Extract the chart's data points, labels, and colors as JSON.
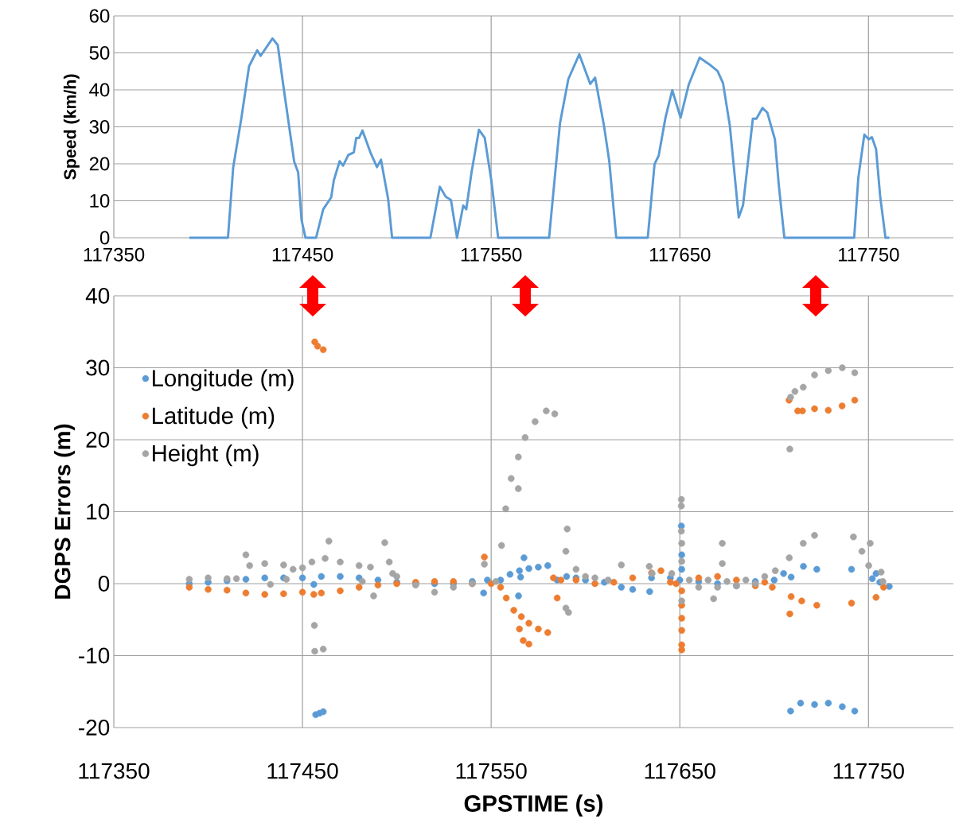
{
  "chart_data": [
    {
      "type": "line",
      "ylabel": "Speed (km/h)",
      "xlim": [
        117350,
        117795
      ],
      "ylim": [
        0,
        60
      ],
      "xticks": [
        117350,
        117450,
        117550,
        117650,
        117750
      ],
      "yticks": [
        0,
        10,
        20,
        30,
        40,
        50,
        60
      ],
      "grid": true,
      "marker": "none",
      "line_style": "solid",
      "series": [
        {
          "color": "#5b9bd5",
          "x": [
            117390,
            117410.5,
            117413.3,
            117417.5,
            117421.7,
            117426,
            117427.8,
            117434.1,
            117436.9,
            117440,
            117442.8,
            117445.6,
            117447.7,
            117449.5,
            117451.6,
            117457.2,
            117461,
            117465.2,
            117466.6,
            117469.7,
            117471.5,
            117474.3,
            117477.2,
            117478.5,
            117480,
            117481.8,
            117486.3,
            117489.5,
            117491.6,
            117495.4,
            117497.5,
            117517.8,
            117522.8,
            117525.9,
            117528.7,
            117531.9,
            117535.2,
            117536.8,
            117539.6,
            117543.5,
            117546.6,
            117550.1,
            117553.7,
            117580.7,
            117584.4,
            117586.5,
            117590.9,
            117596.7,
            117602.5,
            117605.1,
            117609.8,
            117612.6,
            117616.3,
            117633,
            117636.6,
            117638.8,
            117642.4,
            117646,
            117650.4,
            117654.7,
            117660.5,
            117666.4,
            117670,
            117672.9,
            117676.5,
            117679.2,
            117681.2,
            117683.5,
            117688.7,
            117690.6,
            117693.8,
            117696.4,
            117700.4,
            117702.5,
            117705.4,
            117742.4,
            117744.6,
            117747.8,
            117750.1,
            117751.8,
            117754,
            117756.2,
            117759,
            117761
          ],
          "values": [
            0,
            0,
            19.1,
            32,
            46.4,
            50.7,
            49.2,
            53.9,
            52.1,
            40.6,
            30.6,
            20.6,
            17.7,
            4.8,
            0,
            0,
            7.7,
            10.9,
            15.5,
            20.7,
            19.5,
            22.4,
            23.1,
            27,
            27,
            29,
            22.7,
            19.1,
            21.1,
            10.5,
            0,
            0,
            13.8,
            11.1,
            10.2,
            0,
            8.7,
            7.7,
            17.7,
            29.2,
            27,
            15.5,
            0,
            0,
            19.9,
            31,
            42.9,
            49.6,
            41.6,
            43.3,
            30.3,
            20.7,
            0,
            0,
            19.9,
            22.2,
            32.5,
            39.9,
            32.5,
            41.4,
            48.7,
            46.6,
            45.1,
            41.8,
            30.3,
            16.2,
            5.5,
            8.8,
            32.2,
            32.2,
            35.1,
            33.8,
            26.6,
            14,
            0,
            0,
            16.2,
            27.9,
            26.6,
            27.2,
            24,
            11.1,
            0,
            0
          ]
        }
      ]
    },
    {
      "type": "scatter",
      "xlabel": "GPSTIME (s)",
      "ylabel": "DGPS Errors (m)",
      "xlim": [
        117350,
        117795
      ],
      "ylim": [
        -20,
        40
      ],
      "xticks": [
        117350,
        117450,
        117550,
        117650,
        117750
      ],
      "yticks": [
        -20,
        -10,
        0,
        10,
        20,
        30,
        40
      ],
      "grid": true,
      "legend": "top left",
      "marker": "circle",
      "series": [
        {
          "name": "Longitude (m)",
          "color": "#5b9bd5",
          "x": [
            117390,
            117400,
            117410,
            117420,
            117430,
            117440,
            117450,
            117456,
            117457,
            117459,
            117461,
            117460,
            117470,
            117480,
            117490,
            117500,
            117510,
            117520,
            117530,
            117540,
            117546,
            117548,
            117555,
            117560,
            117564.5,
            117565,
            117565.6,
            117567.4,
            117570,
            117575,
            117580,
            117585,
            117590,
            117595,
            117600,
            117610,
            117619,
            117625,
            117634,
            117635,
            117645,
            117650,
            117650.8,
            117651,
            117651,
            117660,
            117670,
            117680,
            117690,
            117700,
            117705,
            117709,
            117715.5,
            117722.6,
            117741,
            117754,
            117752,
            117756,
            117761,
            117708.7,
            117714,
            117721.4,
            117728.7,
            117736.1,
            117742.7
          ],
          "values": [
            0,
            0.2,
            0.4,
            0.6,
            0.8,
            0.8,
            0.8,
            -0.1,
            -18.2,
            -18,
            -17.8,
            1.0,
            1.0,
            0.8,
            0.5,
            0.2,
            0,
            0,
            0,
            0.3,
            -1.3,
            0.5,
            0.5,
            1.3,
            -1.7,
            1.8,
            0.9,
            3.6,
            2.1,
            2.3,
            2.5,
            0.5,
            1.0,
            0.8,
            0.5,
            0.2,
            -0.5,
            -0.8,
            -1.1,
            0.8,
            0.8,
            0.5,
            8.0,
            4,
            2,
            0.3,
            0,
            -0.3,
            0.3,
            0.5,
            1.4,
            0.9,
            2.4,
            2.0,
            2.0,
            1.4,
            0.7,
            0.2,
            -0.4,
            -17.7,
            -16.6,
            -16.8,
            -16.6,
            -17.1,
            -17.7
          ]
        },
        {
          "name": "Latitude (m)",
          "color": "#ed7d31",
          "x": [
            117390,
            117400,
            117410,
            117420,
            117430,
            117440,
            117450,
            117456,
            117460,
            117470,
            117480,
            117490,
            117500,
            117510,
            117520,
            117530,
            117540,
            117550,
            117456.5,
            117458,
            117461,
            117546.4,
            117555,
            117558,
            117562,
            117565,
            117566,
            117570,
            117575,
            117580,
            117567,
            117570,
            117583,
            117585,
            117587,
            117595,
            117605,
            117615,
            117625,
            117635,
            117640,
            117645,
            117648,
            117651,
            117651,
            117651,
            117651,
            117651,
            117651,
            117660,
            117670,
            117680,
            117690,
            117695,
            117699,
            117709,
            117708.3,
            117714.6,
            117722.6,
            117741,
            117754,
            117758,
            117707.9,
            117712.5,
            117715,
            117721.4,
            117728.7,
            117736,
            117742.7
          ],
          "values": [
            -0.5,
            -0.8,
            -0.9,
            -1.3,
            -1.5,
            -1.4,
            -1.2,
            -1.5,
            -1.3,
            -1,
            -0.5,
            -0.2,
            0,
            0.2,
            0.3,
            0.3,
            0,
            0,
            33.6,
            33,
            32.5,
            3.7,
            -0.5,
            -2,
            -3.7,
            -6.3,
            -4.6,
            -5.5,
            -6.3,
            -6.8,
            -7.9,
            -8.4,
            0.8,
            -2,
            0.5,
            0.5,
            0,
            0.2,
            0.8,
            1.5,
            1.8,
            0.2,
            0,
            -1,
            -3,
            -4.8,
            -6.5,
            -8.5,
            -9.2,
            0.8,
            1,
            0.5,
            -0.3,
            0.2,
            -0.5,
            -1.8,
            -4.2,
            -2.4,
            -3.0,
            -2.7,
            -1.9,
            -0.5,
            25.5,
            24.0,
            24,
            24.3,
            24.1,
            24.7,
            25.5
          ]
        },
        {
          "name": "Height (m)",
          "color": "#a5a5a5",
          "x": [
            117390,
            117400,
            117410,
            117415,
            117420,
            117422,
            117430,
            117433,
            117440,
            117441.5,
            117445,
            117450,
            117455,
            117456.3,
            117456.5,
            117461,
            117462,
            117464,
            117470,
            117480,
            117481.7,
            117486,
            117487.7,
            117493.6,
            117496,
            117497.8,
            117500,
            117510,
            117520,
            117530,
            117540,
            117546.4,
            117552.5,
            117555.5,
            117557.7,
            117560.6,
            117564.4,
            117564.4,
            117568,
            117573.3,
            117579.2,
            117583.7,
            117589.6,
            117590.3,
            117589.6,
            117591,
            117595,
            117600,
            117605,
            117612,
            117619,
            117633.8,
            117635.3,
            117645.7,
            117650.8,
            117650.8,
            117650.8,
            117651,
            117651,
            117651,
            117655,
            117660,
            117665,
            117667.9,
            117670,
            117672.5,
            117672.5,
            117675,
            117680,
            117685,
            117690,
            117695,
            117700.6,
            117708,
            117708.3,
            117708.7,
            117711,
            117715.4,
            117721.4,
            117728.7,
            117736.1,
            117742.7,
            117715.4,
            117721.4,
            117742,
            117746.5,
            117750.9,
            117750.1,
            117756.7,
            117757.6
          ],
          "values": [
            0.6,
            0.8,
            0.7,
            0.7,
            4.0,
            2.5,
            2.8,
            -0.1,
            2.6,
            0.6,
            2.0,
            2.2,
            3.0,
            -5.8,
            -9.4,
            -9.1,
            3.5,
            5.9,
            3.0,
            2.5,
            0.3,
            2.3,
            -1.7,
            5.7,
            3.0,
            1.4,
            1,
            -0.2,
            -1.2,
            -0.5,
            0,
            2.7,
            0.3,
            5.3,
            10.4,
            14.6,
            17.6,
            13.2,
            20.3,
            22.5,
            24.0,
            23.6,
            4.5,
            7.6,
            -3.4,
            -4.0,
            2,
            1,
            0.8,
            0.5,
            2.6,
            2.4,
            1.4,
            1.4,
            11.7,
            10.8,
            7.3,
            5.6,
            3.1,
            -2.4,
            0.5,
            -0.5,
            0.5,
            -2.1,
            -0.5,
            5.6,
            2.8,
            0.3,
            -0.3,
            0.5,
            0,
            1.0,
            1.8,
            3.6,
            18.7,
            25.9,
            26.7,
            27.3,
            29.0,
            29.6,
            30.0,
            29.3,
            5.6,
            6.7,
            6.5,
            4.5,
            5.6,
            2.5,
            1.6,
            0.3
          ]
        }
      ]
    }
  ]
}
